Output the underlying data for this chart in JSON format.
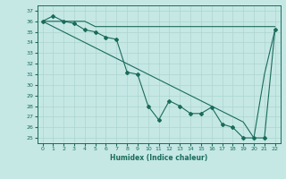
{
  "xlabel": "Humidex (Indice chaleur)",
  "bg_color": "#c5e8e5",
  "grid_color": "#aed4d0",
  "line_color": "#1a6b5a",
  "xlim": [
    -0.5,
    22.5
  ],
  "ylim": [
    24.5,
    37.5
  ],
  "yticks": [
    25,
    26,
    27,
    28,
    29,
    30,
    31,
    32,
    33,
    34,
    35,
    36,
    37
  ],
  "xticks": [
    0,
    1,
    2,
    3,
    4,
    5,
    6,
    7,
    8,
    9,
    10,
    11,
    12,
    13,
    14,
    15,
    16,
    17,
    18,
    19,
    20,
    21,
    22
  ],
  "series_flat": [
    36,
    36,
    36,
    36,
    36,
    35.5,
    35.5,
    35.5,
    35.5,
    35.5,
    35.5,
    35.5,
    35.5,
    35.5,
    35.5,
    35.5,
    35.5,
    35.5,
    35.5,
    35.5,
    35.5,
    35.5,
    35.5
  ],
  "series_data": [
    36,
    36.5,
    36,
    35.8,
    35.2,
    35.0,
    34.5,
    34.3,
    31.2,
    31.0,
    28.0,
    26.7,
    28.5,
    28.0,
    27.3,
    27.3,
    27.9,
    26.3,
    26.0,
    25.0,
    25.0,
    25.0,
    35.2
  ],
  "series_line": [
    36,
    35.5,
    35.0,
    34.5,
    34.0,
    33.5,
    33.0,
    32.5,
    32.0,
    31.5,
    31.0,
    30.5,
    30.0,
    29.5,
    29.0,
    28.5,
    28.0,
    27.5,
    27.0,
    26.5,
    25.0,
    31.0,
    35.2
  ]
}
